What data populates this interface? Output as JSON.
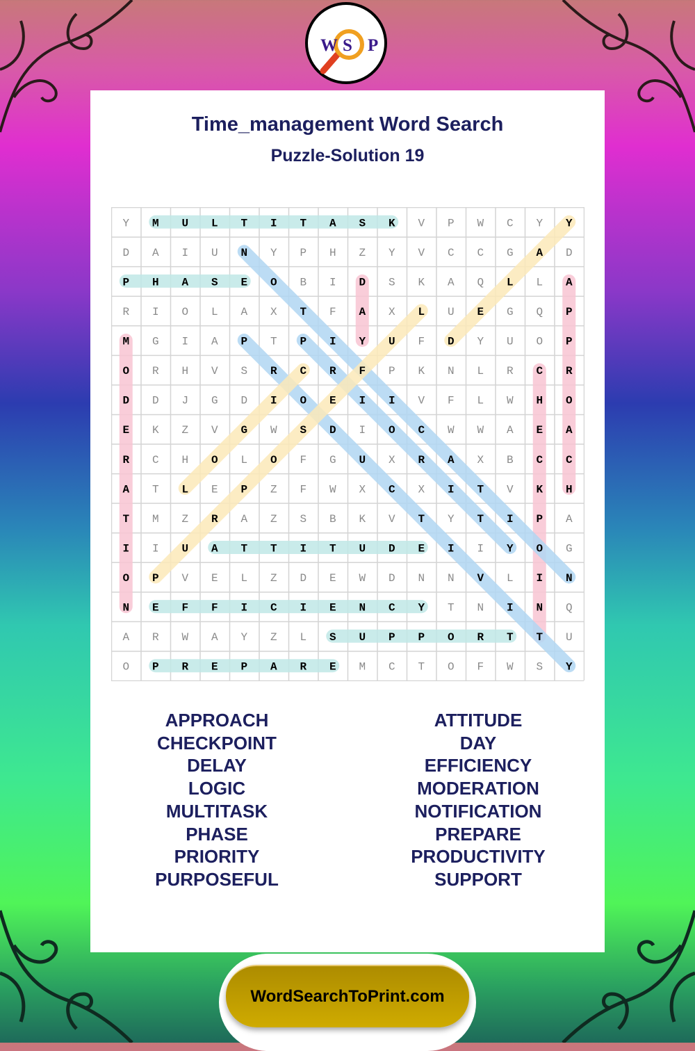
{
  "logo": {
    "letters": [
      "W",
      "S",
      "P"
    ],
    "icon": "magnifying-glass-icon"
  },
  "header": {
    "title": "Time_management Word Search",
    "subtitle": "Puzzle-Solution 19"
  },
  "grid": {
    "rows": [
      "YMULTITASKVPWCYY",
      "DAIUNYPHZYVCCGAD",
      "PHASEOBIDSKAQLLA",
      "RIOLAXTFAXLUEGQP",
      "MGIAPTPIYUFDYUOP",
      "ORHVSRCRFPKNLRCR",
      "DDJGDIOEIIVFLWHO",
      "EKZVGWSDIOCWWAEA",
      "RCHOLOFGUXRAXBCC",
      "ATLEPZFWXCXITVKH",
      "TMZRAZSBKVTYTIPA",
      "IIUATTITUDEIIYOG",
      "OPVELZDEWDNNVLIN",
      "NEFFICIENCYTNINQ",
      "ARWAYZLSUPPORTTU",
      "OPREPAREMCTOFWSY"
    ],
    "colors": {
      "teal": "#bfe8e6",
      "pink": "#f8c4d2",
      "blue": "#b0d6f2",
      "yellow": "#fce9b8"
    },
    "solutions": [
      {
        "word": "MULTITASK",
        "start": [
          0,
          1
        ],
        "end": [
          0,
          9
        ],
        "color": "teal"
      },
      {
        "word": "PHASE",
        "start": [
          2,
          0
        ],
        "end": [
          2,
          4
        ],
        "color": "teal"
      },
      {
        "word": "ATTITUDE",
        "start": [
          11,
          3
        ],
        "end": [
          11,
          10
        ],
        "color": "teal"
      },
      {
        "word": "EFFICIENCY",
        "start": [
          13,
          1
        ],
        "end": [
          13,
          10
        ],
        "color": "teal"
      },
      {
        "word": "SUPPORT",
        "start": [
          14,
          7
        ],
        "end": [
          14,
          13
        ],
        "color": "teal"
      },
      {
        "word": "PREPARE",
        "start": [
          15,
          1
        ],
        "end": [
          15,
          7
        ],
        "color": "teal"
      },
      {
        "word": "MODERATION",
        "start": [
          4,
          0
        ],
        "end": [
          13,
          0
        ],
        "color": "pink"
      },
      {
        "word": "DAY",
        "start": [
          2,
          8
        ],
        "end": [
          4,
          8
        ],
        "color": "pink"
      },
      {
        "word": "APPROACH",
        "start": [
          2,
          15
        ],
        "end": [
          9,
          15
        ],
        "color": "pink"
      },
      {
        "word": "CHECKPOINT",
        "start": [
          5,
          14
        ],
        "end": [
          14,
          14
        ],
        "color": "pink"
      },
      {
        "word": "NOTIFICATION",
        "start": [
          1,
          4
        ],
        "end": [
          12,
          15
        ],
        "color": "blue"
      },
      {
        "word": "PRIORITY",
        "start": [
          4,
          6
        ],
        "end": [
          11,
          13
        ],
        "color": "blue"
      },
      {
        "word": "PRODUCTIVITY",
        "start": [
          4,
          4
        ],
        "end": [
          15,
          15
        ],
        "color": "blue"
      },
      {
        "word": "DELAY",
        "start": [
          4,
          11
        ],
        "end": [
          0,
          15
        ],
        "color": "yellow"
      },
      {
        "word": "LOGIC",
        "start": [
          9,
          2
        ],
        "end": [
          5,
          6
        ],
        "color": "yellow"
      },
      {
        "word": "PURPOSEFUL",
        "start": [
          12,
          1
        ],
        "end": [
          3,
          10
        ],
        "color": "yellow"
      }
    ]
  },
  "word_list": {
    "left": [
      "APPROACH",
      "CHECKPOINT",
      "DELAY",
      "LOGIC",
      "MULTITASK",
      "PHASE",
      "PRIORITY",
      "PURPOSEFUL"
    ],
    "right": [
      "ATTITUDE",
      "DAY",
      "EFFICIENCY",
      "MODERATION",
      "NOTIFICATION",
      "PREPARE",
      "PRODUCTIVITY",
      "SUPPORT"
    ]
  },
  "footer": {
    "site": "WordSearchToPrint.com"
  }
}
